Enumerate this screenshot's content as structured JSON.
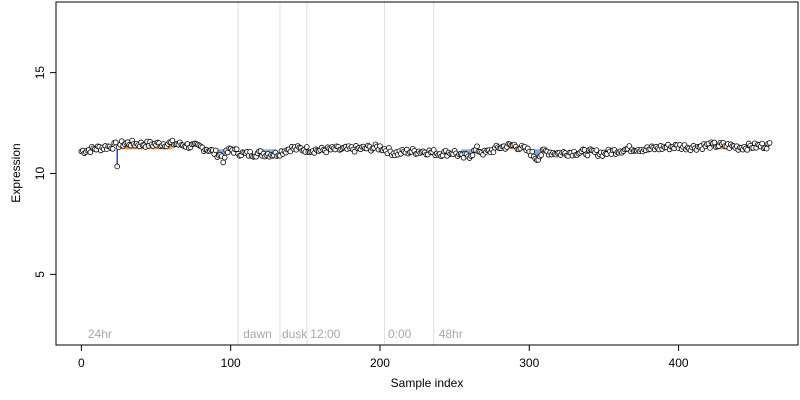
{
  "chart_data": {
    "type": "scatter",
    "title": "",
    "xlabel": "Sample index",
    "ylabel": "Expression",
    "xlim": [
      -17,
      480
    ],
    "ylim": [
      1.5,
      18.5
    ],
    "xticks": [
      0,
      100,
      200,
      300,
      400
    ],
    "yticks": [
      5,
      10,
      15
    ],
    "grid": false,
    "legend": "none",
    "colors": {
      "point_stroke": "#000000",
      "highlight_up": "#e8873a",
      "highlight_down": "#7f9fd8",
      "spike": "#1f3f8f",
      "phase_line": "#e0e0e0",
      "phase_text": "#a8a8a8"
    },
    "phase_lines": [
      105,
      133,
      151,
      203,
      236
    ],
    "phase_labels": [
      {
        "x": 3,
        "text": "24hr"
      },
      {
        "x": 107,
        "text": "dawn"
      },
      {
        "x": 133,
        "text": "dusk"
      },
      {
        "x": 152,
        "text": "12:00"
      },
      {
        "x": 204,
        "text": "0:00"
      },
      {
        "x": 238,
        "text": "48hr"
      }
    ],
    "n_points": 462,
    "anchors_x": [
      0,
      10,
      20,
      30,
      40,
      50,
      60,
      70,
      80,
      85,
      90,
      95,
      100,
      105,
      110,
      120,
      130,
      140,
      150,
      160,
      170,
      180,
      190,
      200,
      210,
      220,
      230,
      240,
      250,
      255,
      260,
      265,
      270,
      280,
      290,
      300,
      305,
      310,
      320,
      330,
      340,
      350,
      360,
      370,
      380,
      390,
      400,
      410,
      420,
      430,
      440,
      450,
      461
    ],
    "anchors_y": [
      11.1,
      11.25,
      11.35,
      11.5,
      11.45,
      11.45,
      11.5,
      11.4,
      11.3,
      11.2,
      11.0,
      10.85,
      11.2,
      11.05,
      10.95,
      11.0,
      10.95,
      11.25,
      11.2,
      11.15,
      11.2,
      11.2,
      11.25,
      11.3,
      11.0,
      11.1,
      11.1,
      11.0,
      11.05,
      10.8,
      10.9,
      11.2,
      11.0,
      11.3,
      11.4,
      11.1,
      10.75,
      11.1,
      11.0,
      11.05,
      11.05,
      11.0,
      11.15,
      11.25,
      11.2,
      11.3,
      11.35,
      11.3,
      11.4,
      11.4,
      11.3,
      11.35,
      11.4
    ],
    "outliers": [
      {
        "x": 24,
        "y": 10.35
      },
      {
        "x": 95,
        "y": 10.55
      }
    ],
    "highlight_up_ranges": [
      [
        25,
        60
      ],
      [
        195,
        205
      ],
      [
        285,
        295
      ],
      [
        425,
        432
      ]
    ],
    "highlight_down_ranges": [
      [
        88,
        98
      ],
      [
        118,
        130
      ],
      [
        255,
        262
      ],
      [
        300,
        308
      ]
    ]
  }
}
